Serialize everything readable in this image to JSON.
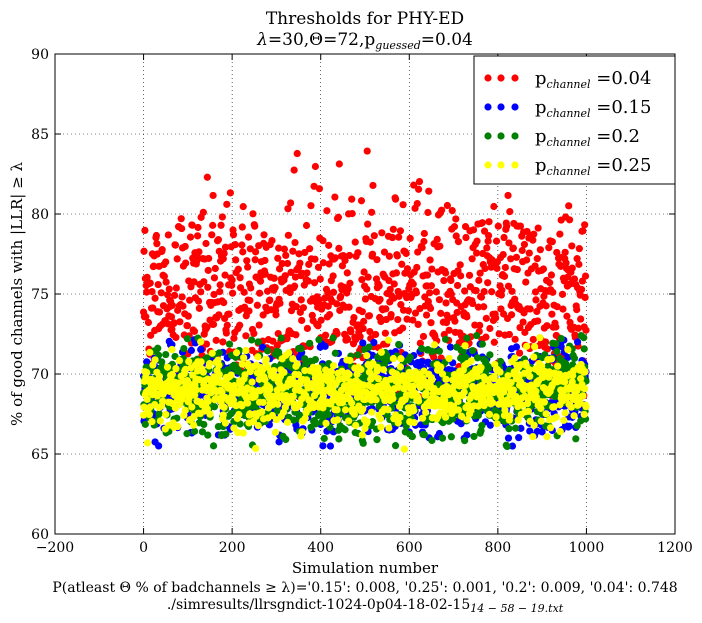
{
  "chart_data": {
    "type": "scatter",
    "title": "Thresholds for PHY-ED",
    "subtitle_parts": {
      "lambda_sym": "λ",
      "lambda_val": "=30,",
      "theta_sym": "Θ",
      "theta_val": "=72,",
      "p": "p",
      "p_sub": "guessed",
      "p_val": "=0.04"
    },
    "xlabel": "Simulation number",
    "ylabel": "% of good channels with |LLR| ≥ λ",
    "xlim": [
      -200,
      1200
    ],
    "ylim": [
      60,
      90
    ],
    "xticks": [
      -200,
      0,
      200,
      400,
      600,
      800,
      1000,
      1200
    ],
    "xtick_labels": [
      "−200",
      "0",
      "200",
      "400",
      "600",
      "800",
      "1000",
      "1200"
    ],
    "yticks": [
      60,
      65,
      70,
      75,
      80,
      85,
      90
    ],
    "ytick_labels": [
      "60",
      "65",
      "70",
      "75",
      "80",
      "85",
      "90"
    ],
    "grid": true,
    "legend_position": "top-right",
    "n_points_per_series": 1000,
    "series": [
      {
        "name": "p_channel =0.04",
        "label_base": "p",
        "label_sub": "channel",
        "label_val": " =0.04",
        "color": "#ff0000",
        "mean": 74.8,
        "spread": 3.0,
        "min": 68.5,
        "max": 84.1
      },
      {
        "name": "p_channel =0.15",
        "label_base": "p",
        "label_sub": "channel",
        "label_val": " =0.15",
        "color": "#0000ff",
        "mean": 68.9,
        "spread": 1.3,
        "min": 65.3,
        "max": 72.2
      },
      {
        "name": "p_channel =0.2",
        "label_base": "p",
        "label_sub": "channel",
        "label_val": " =0.2",
        "color": "#008000",
        "mean": 69.0,
        "spread": 1.3,
        "min": 65.3,
        "max": 72.5
      },
      {
        "name": "p_channel =0.25",
        "label_base": "p",
        "label_sub": "channel",
        "label_val": " =0.25",
        "color": "#ffff00",
        "mean": 69.0,
        "spread": 1.1,
        "min": 65.3,
        "max": 72.3
      }
    ]
  },
  "footer": {
    "probability_line": "P(atleast Θ % of badchannels ≥ λ)='0.15': 0.008, '0.25': 0.001, '0.2': 0.009, '0.04': 0.748",
    "file_path_main": "./simresults/llrsgndict-1024-0p04-18-02-15",
    "file_path_sub": "14 − 58 − 19.txt"
  }
}
